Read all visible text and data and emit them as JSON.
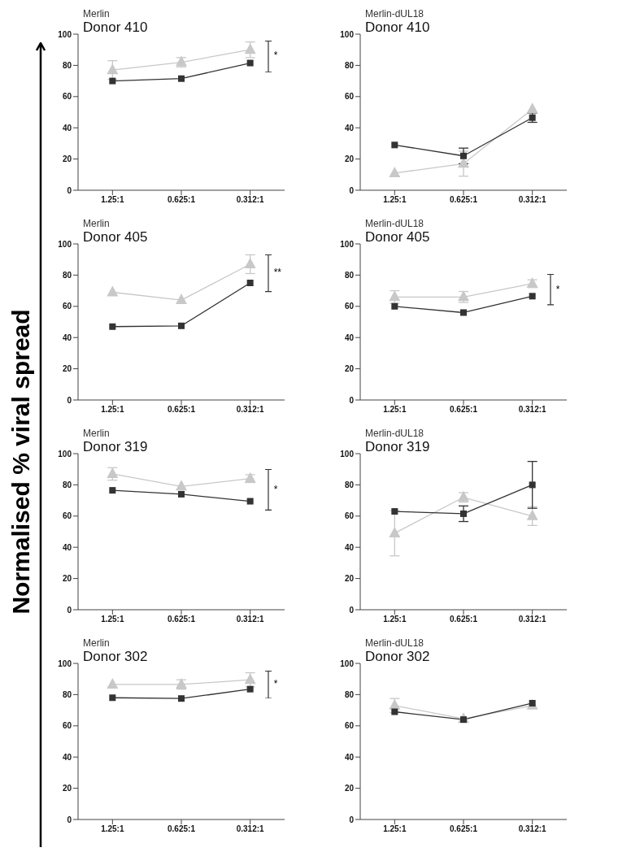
{
  "chart_data": [
    {
      "type": "line",
      "title": "Merlin",
      "subtitle": "Donor 410",
      "ylabel": "Normalised % viral spread",
      "categories": [
        "1.25:1",
        "0.625:1",
        "0.312:1"
      ],
      "ylim": [
        0,
        100
      ],
      "yticks": [
        0,
        20,
        40,
        60,
        80,
        100
      ],
      "annotations": [
        "*"
      ],
      "series": [
        {
          "color": "#c8c8c8",
          "marker": "triangle",
          "values": [
            77,
            82,
            90
          ],
          "errors": [
            6,
            3,
            5
          ]
        },
        {
          "color": "#333333",
          "marker": "square",
          "values": [
            70,
            71.5,
            81.5
          ]
        }
      ]
    },
    {
      "type": "line",
      "title": "Merlin-dUL18",
      "subtitle": "Donor 410",
      "categories": [
        "1.25:1",
        "0.625:1",
        "0.312:1"
      ],
      "ylim": [
        0,
        100
      ],
      "yticks": [
        0,
        20,
        40,
        60,
        80,
        100
      ],
      "series": [
        {
          "color": "#c8c8c8",
          "marker": "triangle",
          "values": [
            11,
            17,
            52
          ],
          "errors": [
            null,
            8,
            null
          ]
        },
        {
          "color": "#333333",
          "marker": "square",
          "values": [
            29,
            22,
            46.5
          ],
          "errors": [
            null,
            5,
            3
          ]
        }
      ]
    },
    {
      "type": "line",
      "title": "Merlin",
      "subtitle": "Donor 405",
      "categories": [
        "1.25:1",
        "0.625:1",
        "0.312:1"
      ],
      "ylim": [
        0,
        100
      ],
      "yticks": [
        0,
        20,
        40,
        60,
        80,
        100
      ],
      "annotations": [
        "**"
      ],
      "series": [
        {
          "color": "#c8c8c8",
          "marker": "triangle",
          "values": [
            69,
            64,
            87
          ],
          "errors": [
            null,
            null,
            6
          ]
        },
        {
          "color": "#333333",
          "marker": "square",
          "values": [
            47,
            47.5,
            75
          ]
        }
      ]
    },
    {
      "type": "line",
      "title": "Merlin-dUL18",
      "subtitle": "Donor 405",
      "categories": [
        "1.25:1",
        "0.625:1",
        "0.312:1"
      ],
      "ylim": [
        0,
        100
      ],
      "yticks": [
        0,
        20,
        40,
        60,
        80,
        100
      ],
      "annotations": [
        "*"
      ],
      "series": [
        {
          "color": "#c8c8c8",
          "marker": "triangle",
          "values": [
            66,
            66,
            74.5
          ],
          "errors": [
            4,
            3.5,
            2.5
          ]
        },
        {
          "color": "#333333",
          "marker": "square",
          "values": [
            60,
            56,
            66.5
          ]
        }
      ]
    },
    {
      "type": "line",
      "title": "Merlin",
      "subtitle": "Donor 319",
      "categories": [
        "1.25:1",
        "0.625:1",
        "0.312:1"
      ],
      "ylim": [
        0,
        100
      ],
      "yticks": [
        0,
        20,
        40,
        60,
        80,
        100
      ],
      "annotations": [
        "*"
      ],
      "series": [
        {
          "color": "#c8c8c8",
          "marker": "triangle",
          "values": [
            87,
            79,
            84
          ],
          "errors": [
            4,
            null,
            2.5
          ]
        },
        {
          "color": "#333333",
          "marker": "square",
          "values": [
            76.5,
            74,
            69.5
          ]
        }
      ]
    },
    {
      "type": "line",
      "title": "Merlin-dUL18",
      "subtitle": "Donor 319",
      "categories": [
        "1.25:1",
        "0.625:1",
        "0.312:1"
      ],
      "ylim": [
        0,
        100
      ],
      "yticks": [
        0,
        20,
        40,
        60,
        80,
        100
      ],
      "series": [
        {
          "color": "#c8c8c8",
          "marker": "triangle",
          "values": [
            49,
            72,
            60
          ],
          "errors": [
            14.5,
            3,
            6
          ]
        },
        {
          "color": "#333333",
          "marker": "square",
          "values": [
            63,
            61.5,
            80
          ],
          "errors": [
            null,
            5,
            15
          ]
        }
      ]
    },
    {
      "type": "line",
      "title": "Merlin",
      "subtitle": "Donor 302",
      "categories": [
        "1.25:1",
        "0.625:1",
        "0.312:1"
      ],
      "ylim": [
        0,
        100
      ],
      "yticks": [
        0,
        20,
        40,
        60,
        80,
        100
      ],
      "annotations": [
        "*"
      ],
      "series": [
        {
          "color": "#c8c8c8",
          "marker": "triangle",
          "values": [
            86.5,
            86.5,
            89.5
          ],
          "errors": [
            null,
            3,
            4.5
          ]
        },
        {
          "color": "#333333",
          "marker": "square",
          "values": [
            78,
            77.5,
            83.5
          ]
        }
      ]
    },
    {
      "type": "line",
      "title": "Merlin-dUL18",
      "subtitle": "Donor 302",
      "categories": [
        "1.25:1",
        "0.625:1",
        "0.312:1"
      ],
      "ylim": [
        0,
        100
      ],
      "yticks": [
        0,
        20,
        40,
        60,
        80,
        100
      ],
      "series": [
        {
          "color": "#c8c8c8",
          "marker": "triangle",
          "values": [
            73,
            64.5,
            73
          ],
          "errors": [
            4.5,
            null,
            null
          ]
        },
        {
          "color": "#333333",
          "marker": "square",
          "values": [
            69,
            64,
            74.5
          ]
        }
      ]
    }
  ]
}
